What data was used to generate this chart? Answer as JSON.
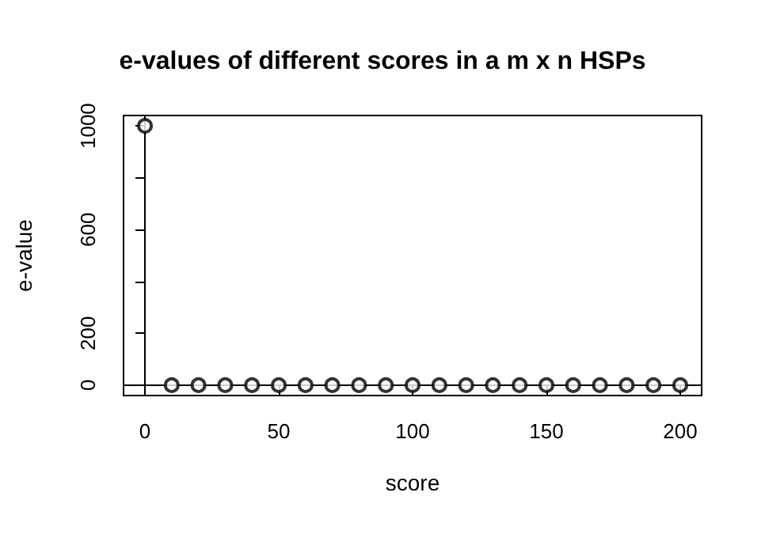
{
  "chart_data": {
    "type": "scatter",
    "title": "e-values of different scores in a m x n HSPs",
    "xlabel": "score",
    "ylabel": "e-value",
    "x": [
      0,
      10,
      20,
      30,
      40,
      50,
      60,
      70,
      80,
      90,
      100,
      110,
      120,
      130,
      140,
      150,
      160,
      170,
      180,
      190,
      200
    ],
    "values": [
      1000,
      0,
      0,
      0,
      0,
      0,
      0,
      0,
      0,
      0,
      0,
      0,
      0,
      0,
      0,
      0,
      0,
      0,
      0,
      0,
      0
    ],
    "color": "#000000",
    "marker": "circle",
    "xlim": [
      -8,
      208
    ],
    "xticks": [
      0,
      50,
      100,
      150,
      200
    ],
    "ylim": [
      -40,
      1040
    ],
    "yticks": [
      0,
      200,
      {
        "value": 400,
        "label": null
      },
      600,
      {
        "value": 800,
        "label": null
      },
      1000
    ]
  }
}
